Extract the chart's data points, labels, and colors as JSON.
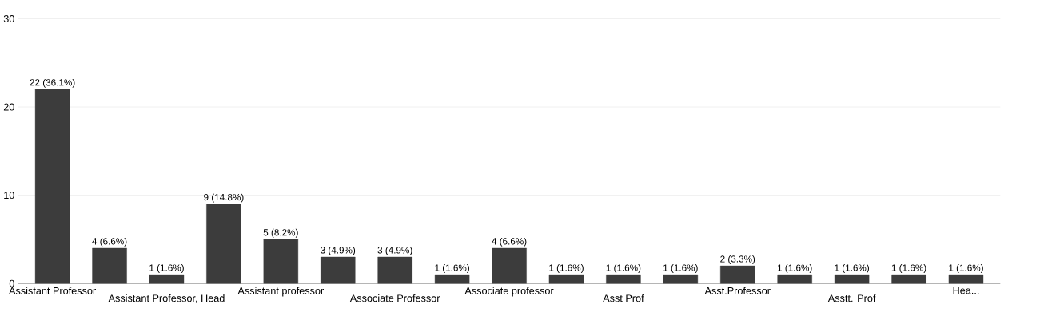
{
  "chart_data": {
    "type": "bar",
    "categories": [
      "Assistant Professor",
      null,
      "Assistant Professor, Head",
      null,
      "Assistant professor",
      null,
      "Associate Professor",
      null,
      "Associate professor",
      null,
      "Asst Prof",
      null,
      "Asst.Professor",
      null,
      "Asstt. Prof",
      null,
      "Hea..."
    ],
    "values": [
      22,
      4,
      1,
      9,
      5,
      3,
      3,
      1,
      4,
      1,
      1,
      1,
      2,
      1,
      1,
      1,
      1
    ],
    "value_labels": [
      "22 (36.1%)",
      "4 (6.6%)",
      "1 (1.6%)",
      "9 (14.8%)",
      "5 (8.2%)",
      "3 (4.9%)",
      "3 (4.9%)",
      "1 (1.6%)",
      "4 (6.6%)",
      "1 (1.6%)",
      "1 (1.6%)",
      "1 (1.6%)",
      "2 (3.3%)",
      "1 (1.6%)",
      "1 (1.6%)",
      "1 (1.6%)",
      "1 (1.6%)"
    ],
    "color": "#3c3c3c",
    "ylim": [
      0,
      30
    ],
    "yticks": [
      0,
      10,
      20,
      30
    ],
    "grid": "y"
  }
}
